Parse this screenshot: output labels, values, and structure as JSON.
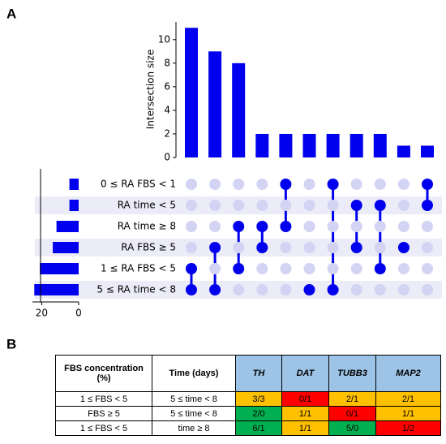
{
  "panels": [
    "A",
    "B"
  ],
  "chart_data": {
    "type": "upset",
    "ylabel": "Intersection size",
    "values": [
      11,
      9,
      8,
      2,
      2,
      2,
      2,
      2,
      2,
      1,
      1
    ],
    "ylim": [
      0,
      11.5
    ],
    "yticks": [
      0,
      2,
      4,
      6,
      8,
      10
    ],
    "sets": [
      "0 ≤ RA FBS < 1",
      "RA time < 5",
      "RA time ≥ 8",
      "RA FBS ≥ 5",
      "1 ≤ RA FBS < 5",
      "5 ≤ RA time < 8"
    ],
    "set_sizes": [
      5,
      5,
      12,
      14,
      21,
      24
    ],
    "xlim": [
      25,
      0
    ],
    "xticks": [
      20,
      0
    ],
    "matrix": [
      [
        0,
        0,
        0,
        0,
        1,
        0,
        1,
        0,
        0,
        0,
        1
      ],
      [
        0,
        0,
        0,
        0,
        0,
        0,
        0,
        1,
        1,
        0,
        1
      ],
      [
        0,
        0,
        1,
        1,
        1,
        0,
        0,
        0,
        0,
        0,
        0
      ],
      [
        0,
        1,
        0,
        1,
        0,
        0,
        0,
        1,
        0,
        1,
        0
      ],
      [
        1,
        0,
        1,
        0,
        0,
        0,
        0,
        0,
        1,
        0,
        0
      ],
      [
        1,
        1,
        0,
        0,
        0,
        1,
        1,
        0,
        0,
        0,
        0
      ]
    ],
    "color": "#0000ee",
    "inactive_color": "#d3d3f3",
    "band_color": "#ececf8"
  },
  "table": {
    "header": [
      "FBS concentration (%)",
      "Time (days)",
      "TH",
      "DAT",
      "TUBB3",
      "MAP2"
    ],
    "header_colors": [
      "#ffffff",
      "#ffffff",
      "#9dc3e6",
      "#9dc3e6",
      "#9dc3e6",
      "#9dc3e6"
    ],
    "rows": [
      [
        "1 ≤ FBS < 5",
        "5 ≤ time < 8",
        "3/3",
        "0/1",
        "2/1",
        "2/1"
      ],
      [
        "FBS ≥ 5",
        "5 ≤ time < 8",
        "2/0",
        "1/1",
        "0/1",
        "1/1"
      ],
      [
        "1 ≤ FBS < 5",
        "time ≥ 8",
        "6/1",
        "1/1",
        "5/0",
        "1/2"
      ]
    ],
    "cell_colors": [
      [
        "#ffffff",
        "#ffffff",
        "#ffc000",
        "#ff0000",
        "#ffc000",
        "#ffc000"
      ],
      [
        "#ffffff",
        "#ffffff",
        "#00b050",
        "#ffc000",
        "#ff0000",
        "#ffc000"
      ],
      [
        "#ffffff",
        "#ffffff",
        "#00b050",
        "#ffc000",
        "#00b050",
        "#ff0000"
      ]
    ]
  }
}
